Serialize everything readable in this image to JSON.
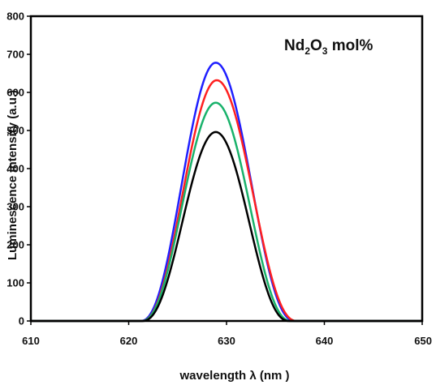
{
  "chart_data": {
    "type": "line",
    "title": "",
    "xlabel": "wavelength λ (nm )",
    "ylabel": "Luminescence intensity (a.u.)",
    "xlim": [
      610,
      650
    ],
    "ylim": [
      0,
      800
    ],
    "xticks": [
      "610",
      "620",
      "630",
      "640",
      "650"
    ],
    "yticks": [
      "0",
      "100",
      "200",
      "300",
      "400",
      "500",
      "600",
      "700",
      "800"
    ],
    "grid": false,
    "legend": "none",
    "annotation": {
      "base": "Nd",
      "sub1": "2",
      "mid": "O",
      "sub2": "3",
      "tail": " mol%"
    },
    "series": [
      {
        "color": "#1f1fff",
        "peak_x": 628.9,
        "peak_y": 678,
        "left_base": 621.2,
        "right_base": 637.0
      },
      {
        "color": "#ff2020",
        "peak_x": 629.0,
        "peak_y": 632,
        "left_base": 621.3,
        "right_base": 637.2
      },
      {
        "color": "#19b26b",
        "peak_x": 628.9,
        "peak_y": 573,
        "left_base": 621.3,
        "right_base": 636.6
      },
      {
        "color": "#000000",
        "peak_x": 628.9,
        "peak_y": 496,
        "left_base": 621.4,
        "right_base": 636.4
      }
    ]
  }
}
